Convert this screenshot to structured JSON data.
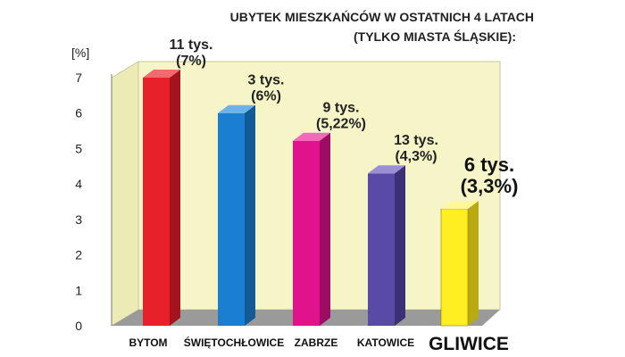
{
  "chart_data": {
    "type": "bar",
    "title": [
      "UBYTEK MIESZKAŃCÓW W OSTATNICH 4 LATACH",
      "(TYLKO MIASTA ŚLĄSKIE):"
    ],
    "ylabel": "[%]",
    "ylim": [
      0,
      7
    ],
    "yticks": [
      "0",
      "1",
      "2",
      "3",
      "4",
      "5",
      "6",
      "7"
    ],
    "grid": false,
    "categories": [
      "BYTOM",
      "ŚWIĘTOCHŁOWICE",
      "ZABRZE",
      "KATOWICE",
      "GLIWICE"
    ],
    "values": [
      7,
      6,
      5.22,
      4.3,
      3.3
    ],
    "annotations": [
      [
        "11 tys.",
        "(7%)"
      ],
      [
        "3 tys.",
        "(6%)"
      ],
      [
        "9 tys.",
        "(5,22%)"
      ],
      [
        "13 tys.",
        "(4,3%)"
      ],
      [
        "6 tys.",
        "(3,3%)"
      ]
    ],
    "colors": [
      "#e8202a",
      "#1a7fd1",
      "#e0138c",
      "#5a4aa8",
      "#ffee22"
    ],
    "side_colors": [
      "#a3141c",
      "#115a95",
      "#9c0c62",
      "#3c3077",
      "#b8aa10"
    ],
    "top_colors": [
      "#f26a70",
      "#6cb3ea",
      "#f26ab9",
      "#9b8fd6",
      "#fff79a"
    ],
    "highlight_index": 4,
    "wall_color": "#f6f5c8",
    "floor_color": "#9a9a9a"
  }
}
